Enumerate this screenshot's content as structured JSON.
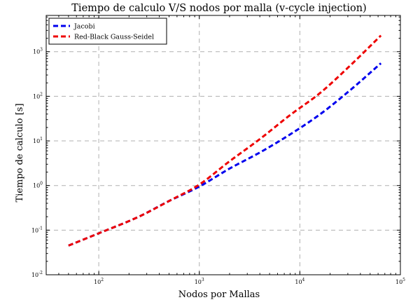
{
  "chart_data": {
    "type": "line",
    "title": "Tiempo de calculo V/S nodos por malla (v-cycle injection)",
    "xlabel": "Nodos por Mallas",
    "ylabel": "Tiempo de calculo [s]",
    "xscale": "log",
    "yscale": "log",
    "xlim": [
      30,
      100000
    ],
    "ylim": [
      0.01,
      6500
    ],
    "grid": true,
    "legend_position": "top-left",
    "x_ticks": [
      {
        "value": 100,
        "base": "10",
        "exp": "2"
      },
      {
        "value": 1000,
        "base": "10",
        "exp": "3"
      },
      {
        "value": 10000,
        "base": "10",
        "exp": "4"
      },
      {
        "value": 100000,
        "base": "10",
        "exp": "5"
      }
    ],
    "y_ticks": [
      {
        "value": 0.01,
        "base": "10",
        "exp": "-2"
      },
      {
        "value": 0.1,
        "base": "10",
        "exp": "-1"
      },
      {
        "value": 1,
        "base": "10",
        "exp": "0"
      },
      {
        "value": 10,
        "base": "10",
        "exp": "1"
      },
      {
        "value": 100,
        "base": "10",
        "exp": "2"
      },
      {
        "value": 1000,
        "base": "10",
        "exp": "3"
      }
    ],
    "series": [
      {
        "name": "Jacobi",
        "color": "#0000ee",
        "x": [
          50,
          100,
          250,
          500,
          1000,
          2000,
          4000,
          8000,
          16000,
          32000,
          64000
        ],
        "y": [
          0.045,
          0.085,
          0.2,
          0.45,
          0.95,
          2.4,
          5.5,
          14,
          40,
          140,
          550
        ]
      },
      {
        "name": "Red-Black Gauss-Seidel",
        "color": "#ee0000",
        "x": [
          50,
          100,
          250,
          500,
          1000,
          2000,
          4000,
          8000,
          16000,
          32000,
          64000
        ],
        "y": [
          0.045,
          0.085,
          0.2,
          0.45,
          1.05,
          3.5,
          11,
          38,
          120,
          500,
          2300
        ]
      }
    ]
  }
}
